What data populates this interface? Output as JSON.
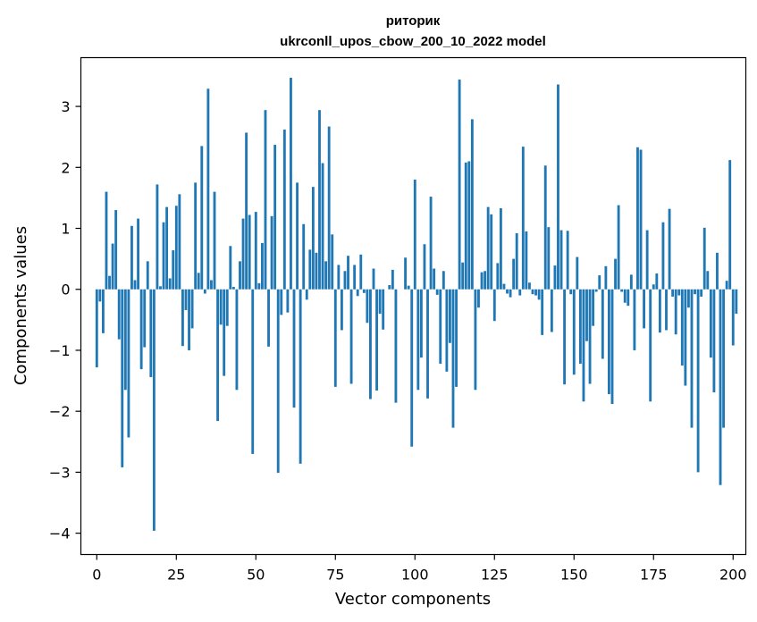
{
  "chart_data": {
    "type": "bar",
    "title": "риторик",
    "subtitle": "ukrconll_upos_cbow_200_10_2022 model",
    "xlabel": "Vector components",
    "ylabel": "Components values",
    "xlim": [
      -5,
      204
    ],
    "ylim": [
      -4.35,
      3.8
    ],
    "xticks": [
      0,
      25,
      50,
      75,
      100,
      125,
      150,
      175,
      200
    ],
    "yticks": [
      -4,
      -3,
      -2,
      -1,
      0,
      1,
      2,
      3
    ],
    "ytick_labels": [
      "−4",
      "−3",
      "−2",
      "−1",
      "0",
      "1",
      "2",
      "3"
    ],
    "bar_color": "#1f77b4",
    "values": [
      -1.28,
      -0.2,
      -0.72,
      1.6,
      0.22,
      0.75,
      1.3,
      -0.82,
      -2.92,
      -1.65,
      -2.43,
      1.04,
      0.15,
      1.16,
      -1.31,
      -0.95,
      0.46,
      -1.44,
      -3.96,
      1.72,
      0.05,
      1.1,
      1.35,
      0.18,
      0.64,
      1.37,
      1.56,
      -0.93,
      -0.34,
      -1.0,
      -0.64,
      1.75,
      0.27,
      2.35,
      -0.07,
      3.29,
      0.15,
      1.6,
      -2.16,
      -0.58,
      -1.42,
      -0.6,
      0.71,
      0.04,
      -1.65,
      0.46,
      1.16,
      2.57,
      1.22,
      -2.7,
      1.27,
      0.1,
      0.76,
      2.94,
      -0.94,
      1.2,
      2.37,
      -3.01,
      -0.42,
      2.62,
      -0.38,
      3.47,
      -1.94,
      1.75,
      -2.86,
      1.07,
      -0.17,
      0.65,
      1.68,
      0.6,
      2.94,
      2.07,
      0.46,
      2.67,
      0.9,
      -1.6,
      0.4,
      -0.67,
      0.3,
      0.55,
      -1.55,
      0.4,
      -0.11,
      0.57,
      -0.06,
      -0.55,
      -1.8,
      0.34,
      -1.66,
      -0.4,
      -0.66,
      0.0,
      0.07,
      0.32,
      -1.86,
      0.0,
      0.0,
      0.52,
      0.06,
      -2.58,
      1.8,
      -1.65,
      -1.12,
      0.74,
      -1.79,
      1.52,
      0.34,
      -0.09,
      -1.22,
      0.3,
      -1.35,
      -0.88,
      -2.27,
      -1.6,
      3.44,
      0.44,
      2.08,
      2.1,
      2.79,
      -1.65,
      -0.3,
      0.28,
      0.3,
      1.35,
      1.23,
      -0.52,
      0.43,
      1.33,
      0.09,
      -0.07,
      -0.13,
      0.5,
      0.92,
      -0.1,
      2.34,
      0.95,
      0.11,
      -0.08,
      -0.1,
      -0.17,
      -0.75,
      2.03,
      1.02,
      -0.7,
      0.39,
      3.36,
      0.97,
      -1.56,
      0.96,
      -0.08,
      -1.4,
      0.53,
      -1.22,
      -1.84,
      -0.85,
      -1.55,
      -0.6,
      -0.04,
      0.23,
      -1.14,
      0.38,
      -1.72,
      -1.88,
      0.5,
      1.38,
      -0.04,
      -0.22,
      -0.27,
      0.24,
      -1.0,
      2.33,
      2.29,
      -0.64,
      0.97,
      -1.84,
      0.08,
      0.26,
      -0.71,
      1.1,
      -0.67,
      1.32,
      -0.12,
      -0.74,
      -0.1,
      -1.25,
      -1.58,
      -0.3,
      -2.27,
      -0.08,
      -3.0,
      -0.12,
      1.01,
      0.3,
      -1.12,
      -1.69,
      0.6,
      -3.21,
      -2.27,
      0.14,
      2.12,
      -0.92,
      -0.4
    ]
  }
}
